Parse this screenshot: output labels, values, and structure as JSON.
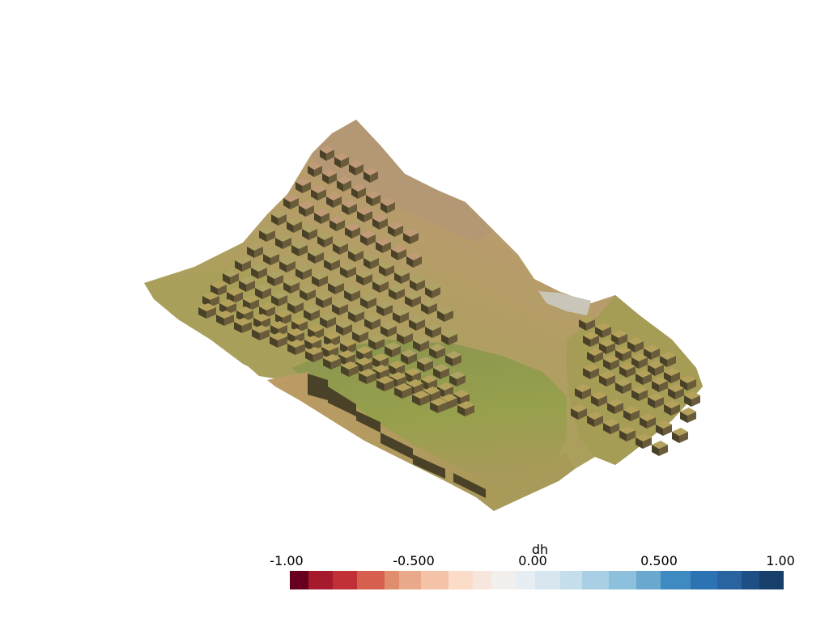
{
  "scene": {
    "colors": {
      "low": "#96a04a",
      "mid": "#aea264",
      "high": "#c19b78",
      "side_dark": "#4a4228",
      "side_mid": "#6a5c3a",
      "slope": "#b4a25c",
      "floor": "#8f9a4a",
      "rim": "#c3966a",
      "water": "#bfbfbf"
    }
  },
  "colorbar": {
    "title": "dh",
    "ticks": [
      "-1.00",
      "-0.500",
      "0.00",
      "0.500",
      "1.00"
    ],
    "tick_values": [
      -1.0,
      -0.5,
      0.0,
      0.5,
      1.0
    ],
    "range": [
      -1.0,
      1.0
    ],
    "colors": [
      "#67001f",
      "#a51a2c",
      "#c03036",
      "#d6604d",
      "#e08d6e",
      "#e9a98a",
      "#f4c3a8",
      "#fbdcc9",
      "#f7e6de",
      "#f2efec",
      "#e7eef3",
      "#d8e6f0",
      "#c5deec",
      "#a9cfe5",
      "#8dc0dd",
      "#6aa8cf",
      "#3f8ac0",
      "#2b73b2",
      "#2a64a0",
      "#1e4f84",
      "#163f6c"
    ],
    "widths": [
      1.5,
      2,
      2,
      2.2,
      1.2,
      1.8,
      2.2,
      2,
      1.5,
      2,
      1.6,
      2,
      1.8,
      2.2,
      2.2,
      2,
      2.4,
      2.2,
      2,
      1.4,
      2
    ]
  }
}
